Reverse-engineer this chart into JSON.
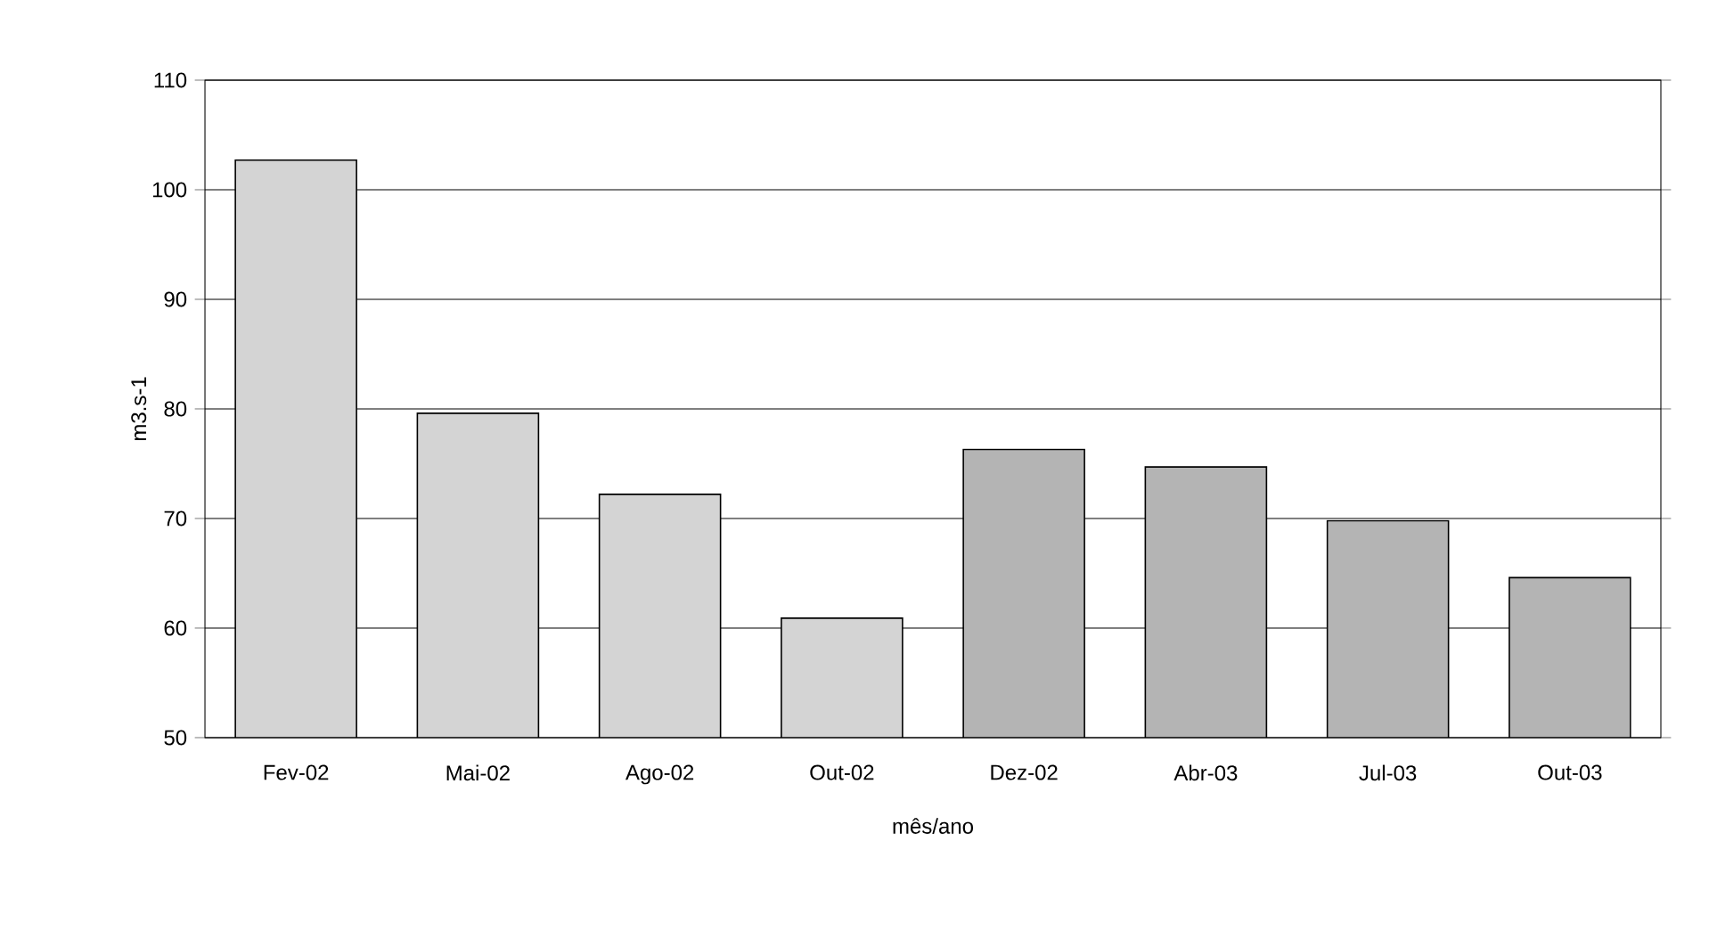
{
  "chart_data": {
    "type": "bar",
    "xlabel": "mês/ano",
    "ylabel": "m3.s-1",
    "categories": [
      "Fev-02",
      "Mai-02",
      "Ago-02",
      "Out-02",
      "Dez-02",
      "Abr-03",
      "Jul-03",
      "Out-03"
    ],
    "values": [
      102.7,
      79.6,
      72.2,
      60.9,
      76.3,
      74.7,
      69.8,
      64.6
    ],
    "colors": [
      "#d4d4d4",
      "#d4d4d4",
      "#d4d4d4",
      "#d4d4d4",
      "#b4b4b4",
      "#b4b4b4",
      "#b4b4b4",
      "#b4b4b4"
    ],
    "ylim": [
      50,
      110
    ],
    "yticks": [
      50,
      60,
      70,
      80,
      90,
      100,
      110
    ],
    "grid": "y"
  }
}
